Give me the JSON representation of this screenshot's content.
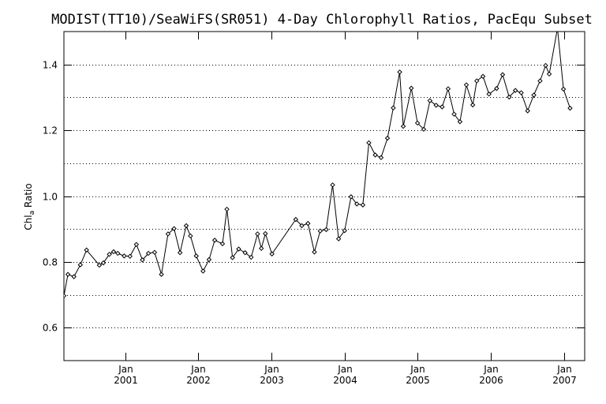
{
  "chart_data": {
    "type": "line",
    "title": "MODIST(TT10)/SeaWiFS(SR051) 4-Day Chlorophyll Ratios, PacEqu Subset",
    "ylabel": "Chl",
    "ylabel_sub": "a",
    "ylabel_suffix": " Ratio",
    "xlabel": "",
    "ylim": [
      0.5,
      1.5
    ],
    "xlim": [
      "2000-03-01",
      "2007-04-15"
    ],
    "y_ticks": [
      0.6,
      0.8,
      1.0,
      1.2,
      1.4
    ],
    "y_tick_labels": [
      "0.6",
      "0.8",
      "1.0",
      "1.2",
      "1.4"
    ],
    "y_gridlines": [
      0.6,
      0.7,
      0.8,
      0.9,
      1.0,
      1.1,
      1.2,
      1.3,
      1.4
    ],
    "grid": "horizontal dotted",
    "x_ticks": [
      {
        "date": "2001-01-01",
        "month": "Jan",
        "year": "2001"
      },
      {
        "date": "2002-01-01",
        "month": "Jan",
        "year": "2002"
      },
      {
        "date": "2003-01-01",
        "month": "Jan",
        "year": "2003"
      },
      {
        "date": "2004-01-01",
        "month": "Jan",
        "year": "2004"
      },
      {
        "date": "2005-01-01",
        "month": "Jan",
        "year": "2005"
      },
      {
        "date": "2006-01-01",
        "month": "Jan",
        "year": "2006"
      },
      {
        "date": "2007-01-01",
        "month": "Jan",
        "year": "2007"
      }
    ],
    "series": [
      {
        "color": "#000000",
        "marker": "diamond",
        "points": [
          [
            "2000-03-01",
            0.697
          ],
          [
            "2000-03-21",
            0.762
          ],
          [
            "2000-04-20",
            0.755
          ],
          [
            "2000-05-22",
            0.791
          ],
          [
            "2000-06-22",
            0.836
          ],
          [
            "2000-08-25",
            0.79
          ],
          [
            "2000-09-14",
            0.797
          ],
          [
            "2000-10-14",
            0.823
          ],
          [
            "2000-11-04",
            0.831
          ],
          [
            "2000-11-25",
            0.826
          ],
          [
            "2000-12-27",
            0.818
          ],
          [
            "2001-01-25",
            0.817
          ],
          [
            "2001-02-26",
            0.853
          ],
          [
            "2001-03-28",
            0.806
          ],
          [
            "2001-04-27",
            0.826
          ],
          [
            "2001-05-28",
            0.829
          ],
          [
            "2001-07-01",
            0.762
          ],
          [
            "2001-08-03",
            0.885
          ],
          [
            "2001-09-02",
            0.901
          ],
          [
            "2001-10-02",
            0.828
          ],
          [
            "2001-11-02",
            0.91
          ],
          [
            "2001-11-23",
            0.879
          ],
          [
            "2001-12-22",
            0.818
          ],
          [
            "2002-01-25",
            0.772
          ],
          [
            "2002-02-24",
            0.807
          ],
          [
            "2002-03-24",
            0.866
          ],
          [
            "2002-05-02",
            0.855
          ],
          [
            "2002-05-24",
            0.96
          ],
          [
            "2002-06-21",
            0.813
          ],
          [
            "2002-07-22",
            0.839
          ],
          [
            "2002-08-23",
            0.828
          ],
          [
            "2002-09-22",
            0.814
          ],
          [
            "2002-10-24",
            0.885
          ],
          [
            "2002-11-12",
            0.841
          ],
          [
            "2002-12-02",
            0.886
          ],
          [
            "2003-01-04",
            0.824
          ],
          [
            "2003-05-03",
            0.929
          ],
          [
            "2003-06-02",
            0.91
          ],
          [
            "2003-07-03",
            0.917
          ],
          [
            "2003-08-04",
            0.83
          ],
          [
            "2003-09-02",
            0.894
          ],
          [
            "2003-10-02",
            0.898
          ],
          [
            "2003-11-03",
            1.034
          ],
          [
            "2003-12-03",
            0.87
          ],
          [
            "2004-01-02",
            0.895
          ],
          [
            "2004-02-03",
            0.998
          ],
          [
            "2004-03-03",
            0.976
          ],
          [
            "2004-04-02",
            0.973
          ],
          [
            "2004-05-02",
            1.162
          ],
          [
            "2004-06-03",
            1.125
          ],
          [
            "2004-07-02",
            1.117
          ],
          [
            "2004-08-03",
            1.176
          ],
          [
            "2004-09-01",
            1.268
          ],
          [
            "2004-10-03",
            1.377
          ],
          [
            "2004-10-21",
            1.212
          ],
          [
            "2004-11-30",
            1.328
          ],
          [
            "2004-12-31",
            1.222
          ],
          [
            "2005-01-31",
            1.203
          ],
          [
            "2005-03-03",
            1.29
          ],
          [
            "2005-04-03",
            1.276
          ],
          [
            "2005-05-03",
            1.271
          ],
          [
            "2005-06-02",
            1.326
          ],
          [
            "2005-07-02",
            1.249
          ],
          [
            "2005-07-31",
            1.226
          ],
          [
            "2005-09-01",
            1.338
          ],
          [
            "2005-10-03",
            1.277
          ],
          [
            "2005-10-23",
            1.35
          ],
          [
            "2005-11-23",
            1.364
          ],
          [
            "2005-12-23",
            1.31
          ],
          [
            "2006-01-30",
            1.327
          ],
          [
            "2006-03-01",
            1.369
          ],
          [
            "2006-04-03",
            1.301
          ],
          [
            "2006-05-04",
            1.321
          ],
          [
            "2006-06-02",
            1.314
          ],
          [
            "2006-07-04",
            1.259
          ],
          [
            "2006-08-04",
            1.307
          ],
          [
            "2006-09-04",
            1.35
          ],
          [
            "2006-10-02",
            1.397
          ],
          [
            "2006-10-20",
            1.371
          ],
          [
            "2006-11-30",
            1.51
          ],
          [
            "2006-12-30",
            1.325
          ],
          [
            "2007-02-01",
            1.267
          ]
        ]
      }
    ]
  }
}
